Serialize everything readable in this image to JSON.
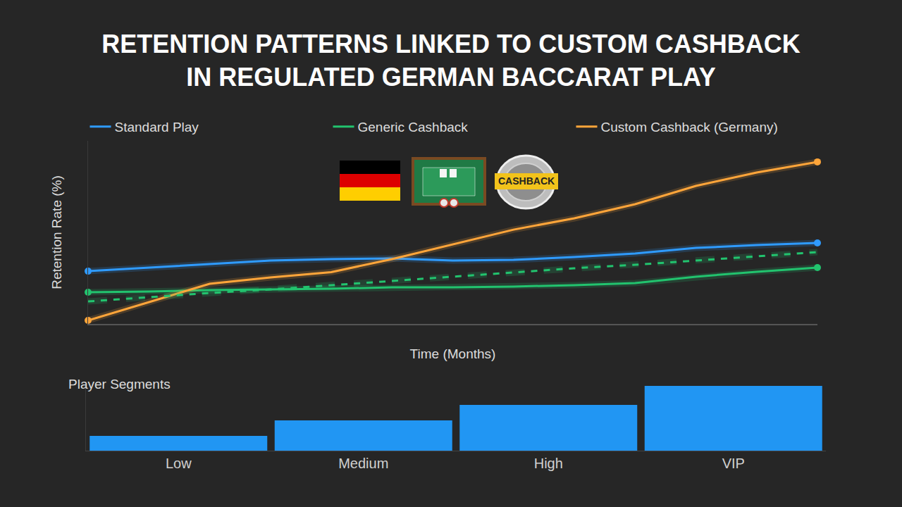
{
  "chart_data": [
    {
      "type": "line",
      "title": "RETENTION PATTERNS LINKED TO CUSTOM CASHBACK IN REGULATED GERMAN BACCARAT PLAY",
      "x_label": "Time (Months)",
      "y_label": "Retention Rate (%)",
      "annotations": [
        "CASHBACK"
      ],
      "x": [
        0,
        1,
        2,
        3,
        4,
        5,
        6,
        7,
        8,
        9,
        10,
        11,
        12
      ],
      "xlim": [
        0,
        12
      ],
      "ylim": [
        0,
        100
      ],
      "tick_labels": false,
      "grid": false,
      "legend": "top",
      "series": [
        {
          "name": "Standard Play",
          "color": "#2f9bff",
          "marker": "endpoints",
          "values": [
            28.8,
            30.8,
            32.7,
            34.6,
            35.4,
            35.8,
            34.6,
            35.0,
            36.5,
            38.5,
            41.5,
            43.1,
            44.2
          ]
        },
        {
          "name": "Generic Cashback",
          "color": "#22c36e",
          "marker": "endpoints",
          "values": [
            17.3,
            17.7,
            18.5,
            18.8,
            19.2,
            20.0,
            20.0,
            20.4,
            21.2,
            22.3,
            25.8,
            28.5,
            30.8
          ]
        },
        {
          "name": "Custom Cashback (Germany)",
          "color": "#ffa53a",
          "marker": "endpoints",
          "values": [
            1.9,
            11.9,
            21.9,
            25.4,
            28.3,
            35.4,
            43.5,
            51.5,
            57.7,
            65.4,
            75.4,
            82.7,
            88.5
          ]
        },
        {
          "color": "#22c36e",
          "line_style": "dashed",
          "values": [
            12.3,
            14.6,
            16.9,
            18.8,
            21.2,
            23.5,
            25.8,
            28.1,
            30.4,
            32.3,
            34.6,
            36.9,
            39.2
          ]
        }
      ]
    },
    {
      "type": "bar",
      "title": "Player Segments",
      "categories": [
        "Low",
        "Medium",
        "High",
        "VIP"
      ],
      "values": [
        21,
        43,
        65,
        92
      ],
      "color": "#2196f3",
      "ylim": [
        0,
        92
      ],
      "tick_labels": "x",
      "grid": false
    }
  ]
}
